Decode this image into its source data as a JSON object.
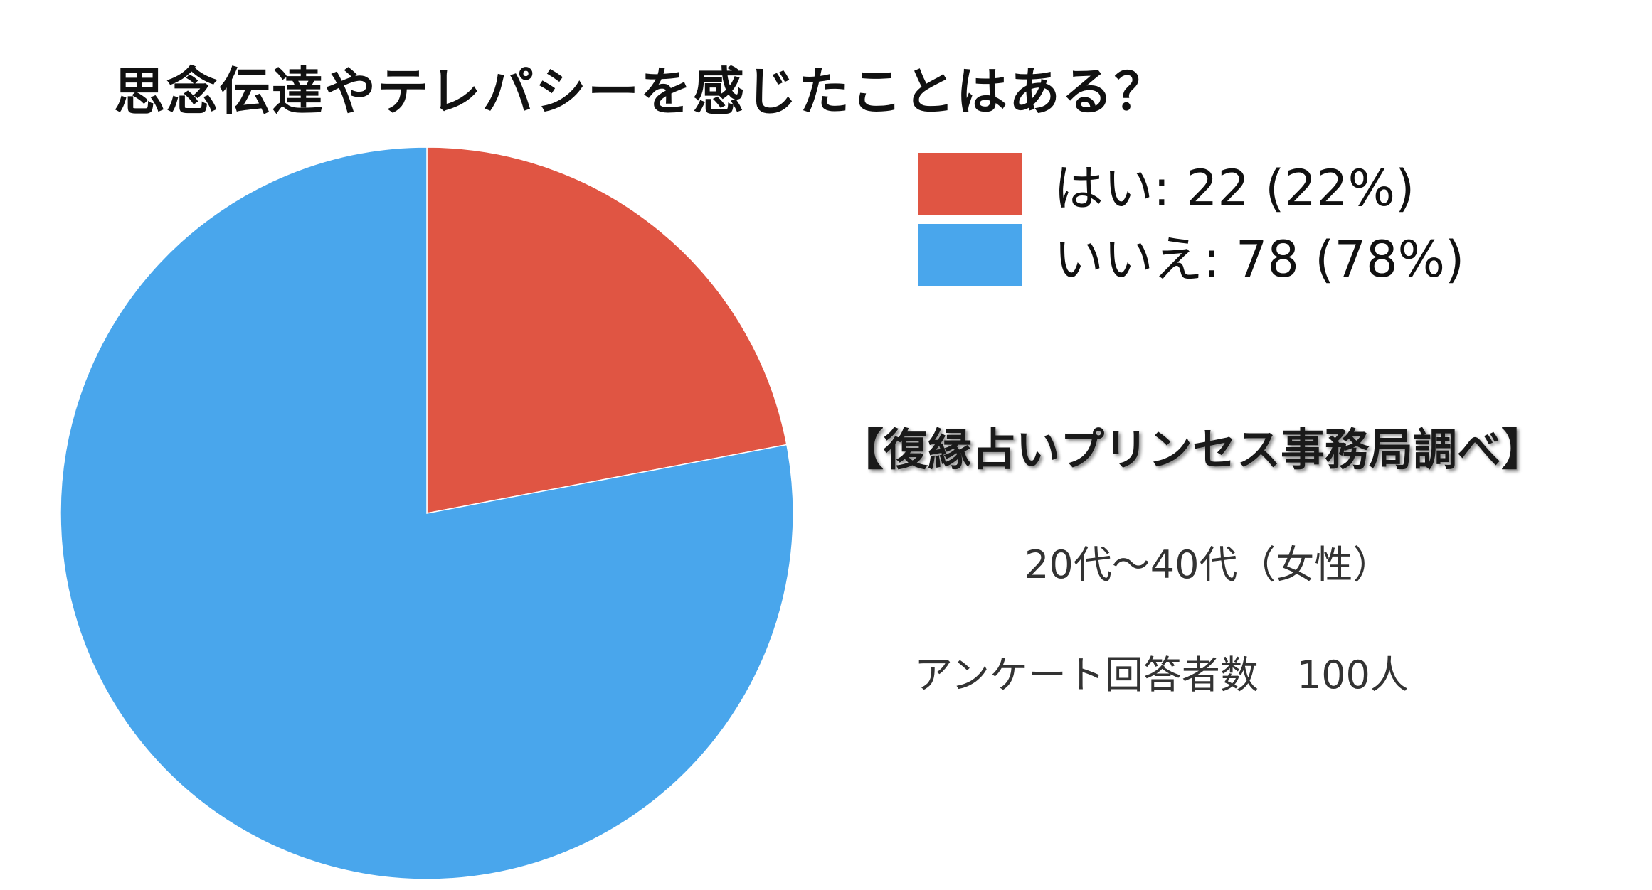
{
  "title": "思念伝達やテレパシーを感じたことはある？",
  "colors": {
    "yes": "#e05543",
    "no": "#49a6ec"
  },
  "chart_data": {
    "type": "pie",
    "title": "思念伝達やテレパシーを感じたことはある？",
    "categories": [
      "はい",
      "いいえ"
    ],
    "values": [
      22,
      78
    ],
    "percentages": [
      22,
      78
    ],
    "legend_labels": [
      "はい: 22 (22%)",
      "いいえ: 78 (78%)"
    ],
    "legend_position": "right",
    "start_angle": "12 o'clock",
    "direction": "clockwise"
  },
  "notes": {
    "source": "【復縁占いプリンセス事務局調べ】",
    "age": "20代〜40代（女性）",
    "respondents": "アンケート回答者数　100人"
  }
}
